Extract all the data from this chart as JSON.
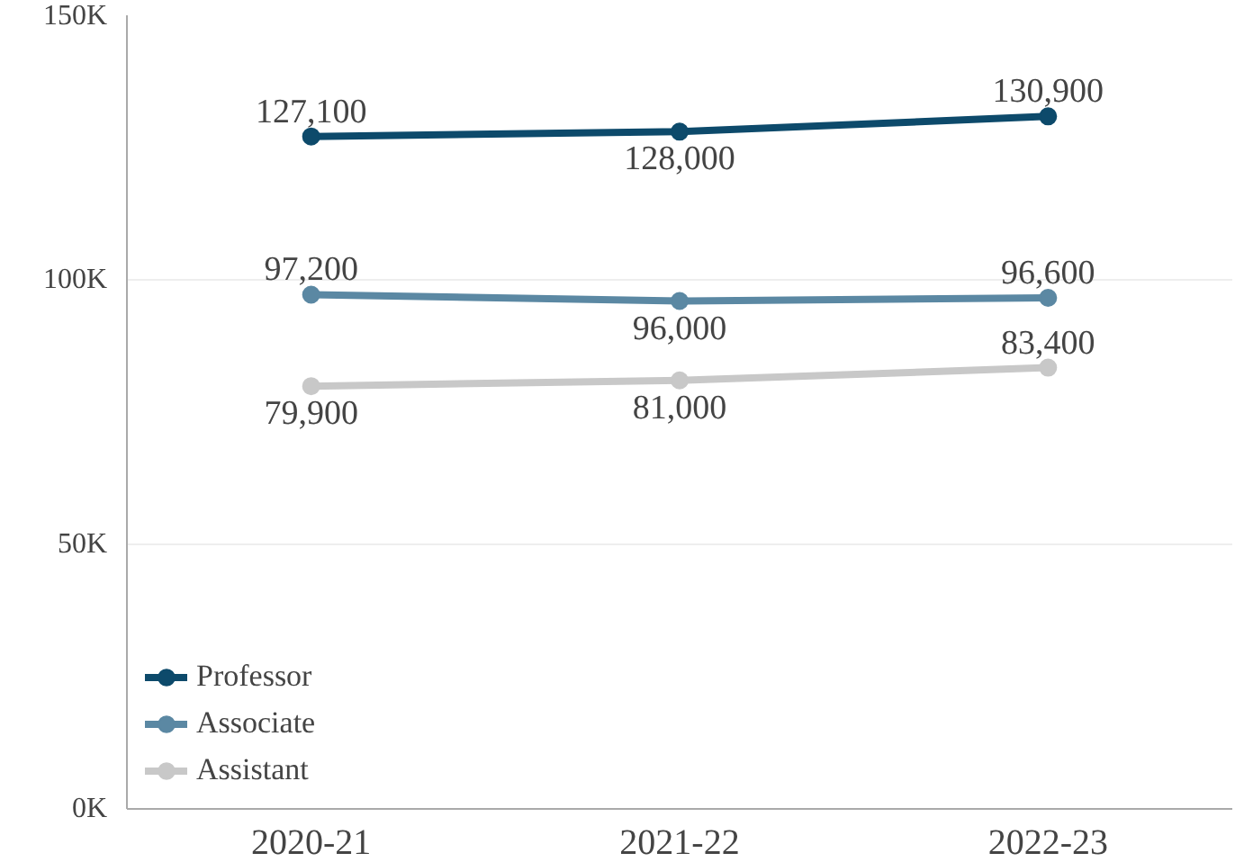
{
  "chart_data": {
    "type": "line",
    "categories": [
      "2020-21",
      "2021-22",
      "2022-23"
    ],
    "series": [
      {
        "name": "Professor",
        "color": "#0d4a6b",
        "values": [
          127100,
          128000,
          130900
        ],
        "value_labels": [
          "127,100",
          "128,000",
          "130,900"
        ]
      },
      {
        "name": "Associate",
        "color": "#5b88a3",
        "values": [
          97200,
          96000,
          96600
        ],
        "value_labels": [
          "97,200",
          "96,000",
          "96,600"
        ]
      },
      {
        "name": "Assistant",
        "color": "#c8c8c8",
        "values": [
          79900,
          81000,
          83400
        ],
        "value_labels": [
          "79,900",
          "81,000",
          "83,400"
        ]
      }
    ],
    "ylim": [
      0,
      150000
    ],
    "yticks": [
      {
        "value": 0,
        "label": "0K"
      },
      {
        "value": 50000,
        "label": "50K"
      },
      {
        "value": 100000,
        "label": "100K"
      },
      {
        "value": 150000,
        "label": "150K"
      }
    ],
    "grid": "y",
    "legend": "bottom left",
    "marker": "circle",
    "line_style": "solid"
  }
}
